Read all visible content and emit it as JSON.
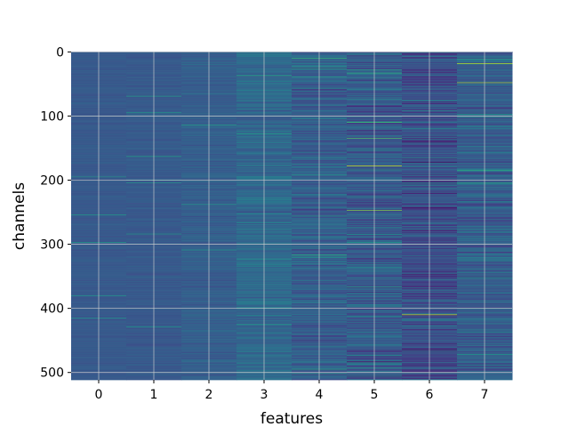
{
  "chart_data": {
    "type": "heatmap",
    "title": "",
    "xlabel": "features",
    "ylabel": "channels",
    "x_categories": [
      "0",
      "1",
      "2",
      "3",
      "4",
      "5",
      "6",
      "7"
    ],
    "y_ticks": [
      0,
      100,
      200,
      300,
      400,
      500
    ],
    "y_range": [
      0,
      511
    ],
    "y_inverted": true,
    "grid": true,
    "colormap": "viridis",
    "rows": 512,
    "columns": 8,
    "feature_base_level": [
      0.28,
      0.28,
      0.3,
      0.34,
      0.3,
      0.28,
      0.24,
      0.3
    ],
    "feature_variance": [
      0.04,
      0.05,
      0.08,
      0.14,
      0.18,
      0.22,
      0.22,
      0.2
    ],
    "highlights": [
      {
        "feature": 4,
        "channel": 10,
        "value": 0.65
      },
      {
        "feature": 5,
        "channel": 178,
        "value": 0.92
      },
      {
        "feature": 5,
        "channel": 247,
        "value": 0.8
      },
      {
        "feature": 6,
        "channel": 410,
        "value": 0.9
      },
      {
        "feature": 7,
        "channel": 18,
        "value": 0.9
      },
      {
        "feature": 7,
        "channel": 48,
        "value": 0.85
      }
    ]
  }
}
